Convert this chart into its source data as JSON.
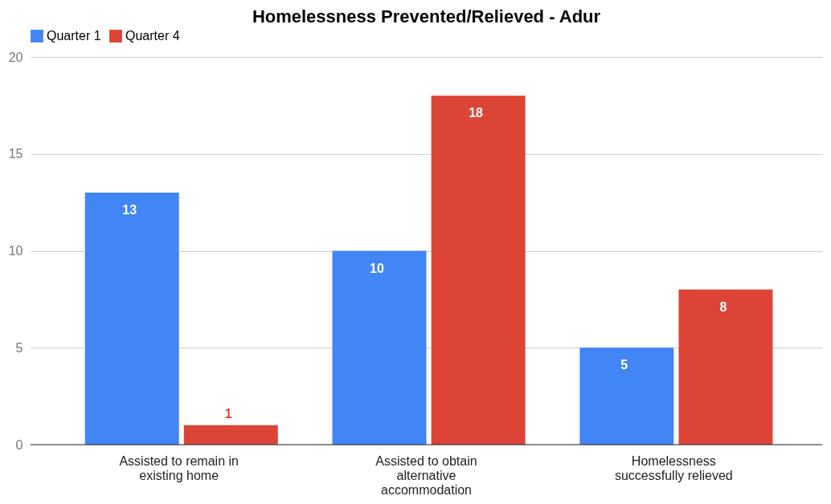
{
  "chart_data": {
    "type": "bar",
    "title": "Homelessness Prevented/Relieved - Adur",
    "categories": [
      "Assisted to remain in existing home",
      "Assisted to obtain alternative accommodation",
      "Homelessness successfully relieved"
    ],
    "series": [
      {
        "name": "Quarter 1",
        "color": "#4285f4",
        "values": [
          13,
          10,
          5
        ]
      },
      {
        "name": "Quarter 4",
        "color": "#db4437",
        "values": [
          1,
          18,
          8
        ]
      }
    ],
    "ylim": [
      0,
      20
    ],
    "yticks": [
      0,
      5,
      10,
      15,
      20
    ],
    "grid": "y",
    "legend": "top",
    "data_labels": true
  }
}
